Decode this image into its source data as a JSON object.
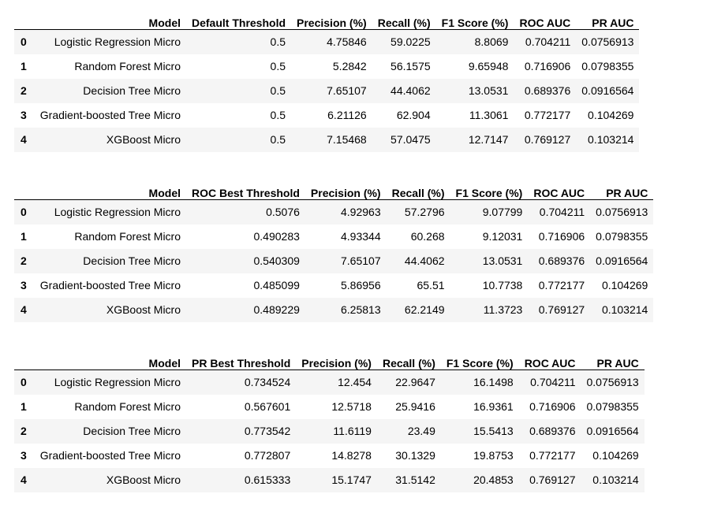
{
  "tables": [
    {
      "columns": [
        "Model",
        "Default Threshold",
        "Precision (%)",
        "Recall (%)",
        "F1 Score (%)",
        "ROC AUC",
        "PR AUC"
      ],
      "rows": [
        {
          "index": "0",
          "cells": [
            "Logistic Regression Micro",
            "0.5",
            "4.75846",
            "59.0225",
            "8.8069",
            "0.704211",
            "0.0756913"
          ]
        },
        {
          "index": "1",
          "cells": [
            "Random Forest Micro",
            "0.5",
            "5.2842",
            "56.1575",
            "9.65948",
            "0.716906",
            "0.0798355"
          ]
        },
        {
          "index": "2",
          "cells": [
            "Decision Tree Micro",
            "0.5",
            "7.65107",
            "44.4062",
            "13.0531",
            "0.689376",
            "0.0916564"
          ]
        },
        {
          "index": "3",
          "cells": [
            "Gradient-boosted Tree Micro",
            "0.5",
            "6.21126",
            "62.904",
            "11.3061",
            "0.772177",
            "0.104269"
          ]
        },
        {
          "index": "4",
          "cells": [
            "XGBoost Micro",
            "0.5",
            "7.15468",
            "57.0475",
            "12.7147",
            "0.769127",
            "0.103214"
          ]
        }
      ]
    },
    {
      "columns": [
        "Model",
        "ROC Best Threshold",
        "Precision (%)",
        "Recall (%)",
        "F1 Score (%)",
        "ROC AUC",
        "PR AUC"
      ],
      "rows": [
        {
          "index": "0",
          "cells": [
            "Logistic Regression Micro",
            "0.5076",
            "4.92963",
            "57.2796",
            "9.07799",
            "0.704211",
            "0.0756913"
          ]
        },
        {
          "index": "1",
          "cells": [
            "Random Forest Micro",
            "0.490283",
            "4.93344",
            "60.268",
            "9.12031",
            "0.716906",
            "0.0798355"
          ]
        },
        {
          "index": "2",
          "cells": [
            "Decision Tree Micro",
            "0.540309",
            "7.65107",
            "44.4062",
            "13.0531",
            "0.689376",
            "0.0916564"
          ]
        },
        {
          "index": "3",
          "cells": [
            "Gradient-boosted Tree Micro",
            "0.485099",
            "5.86956",
            "65.51",
            "10.7738",
            "0.772177",
            "0.104269"
          ]
        },
        {
          "index": "4",
          "cells": [
            "XGBoost Micro",
            "0.489229",
            "6.25813",
            "62.2149",
            "11.3723",
            "0.769127",
            "0.103214"
          ]
        }
      ]
    },
    {
      "columns": [
        "Model",
        "PR Best Threshold",
        "Precision (%)",
        "Recall (%)",
        "F1 Score (%)",
        "ROC AUC",
        "PR AUC"
      ],
      "rows": [
        {
          "index": "0",
          "cells": [
            "Logistic Regression Micro",
            "0.734524",
            "12.454",
            "22.9647",
            "16.1498",
            "0.704211",
            "0.0756913"
          ]
        },
        {
          "index": "1",
          "cells": [
            "Random Forest Micro",
            "0.567601",
            "12.5718",
            "25.9416",
            "16.9361",
            "0.716906",
            "0.0798355"
          ]
        },
        {
          "index": "2",
          "cells": [
            "Decision Tree Micro",
            "0.773542",
            "11.6119",
            "23.49",
            "15.5413",
            "0.689376",
            "0.0916564"
          ]
        },
        {
          "index": "3",
          "cells": [
            "Gradient-boosted Tree Micro",
            "0.772807",
            "14.8278",
            "30.1329",
            "19.8753",
            "0.772177",
            "0.104269"
          ]
        },
        {
          "index": "4",
          "cells": [
            "XGBoost Micro",
            "0.615333",
            "15.1747",
            "31.5142",
            "20.4853",
            "0.769127",
            "0.103214"
          ]
        }
      ]
    }
  ]
}
